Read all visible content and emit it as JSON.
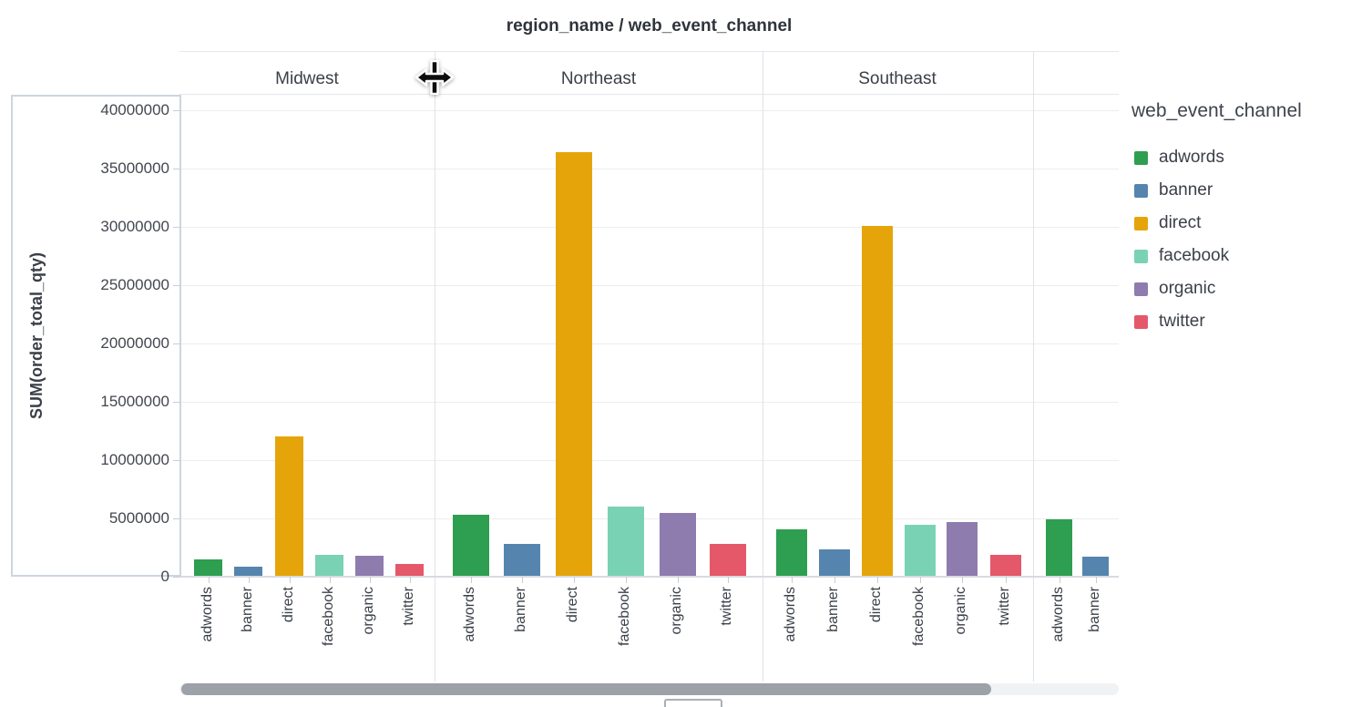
{
  "title": "region_name / web_event_channel",
  "y_axis": {
    "label": "SUM(order_total_qty)",
    "tick_labels": [
      "0",
      "5000000",
      "10000000",
      "15000000",
      "20000000",
      "25000000",
      "30000000",
      "35000000",
      "40000000"
    ]
  },
  "legend": {
    "title": "web_event_channel",
    "items": [
      {
        "label": "adwords",
        "color": "#2e9e51"
      },
      {
        "label": "banner",
        "color": "#5585ae"
      },
      {
        "label": "direct",
        "color": "#e5a50a"
      },
      {
        "label": "facebook",
        "color": "#7ad2b4"
      },
      {
        "label": "organic",
        "color": "#8e7cae"
      },
      {
        "label": "twitter",
        "color": "#e4586a"
      }
    ]
  },
  "icons": {
    "cursor": "move-horizontal-resize-cursor"
  },
  "chart_data": {
    "type": "bar",
    "title": "region_name / web_event_channel",
    "facet_field": "region_name",
    "color_field": "web_event_channel",
    "xlabel": "",
    "ylabel": "SUM(order_total_qty)",
    "ylim": [
      0,
      40000000
    ],
    "ytick_step": 5000000,
    "grid": true,
    "legend_position": "right",
    "categories": [
      "adwords",
      "banner",
      "direct",
      "facebook",
      "organic",
      "twitter"
    ],
    "facets": [
      {
        "name": "Midwest",
        "partial": false,
        "values": [
          1500000,
          850000,
          12000000,
          1900000,
          1800000,
          1100000
        ]
      },
      {
        "name": "Northeast",
        "partial": false,
        "values": [
          5300000,
          2850000,
          36400000,
          6000000,
          5500000,
          2800000
        ]
      },
      {
        "name": "Southeast",
        "partial": false,
        "values": [
          4100000,
          2350000,
          30100000,
          4450000,
          4700000,
          1850000
        ]
      },
      {
        "name": "",
        "partial": true,
        "values": [
          4900000,
          1750000
        ]
      }
    ],
    "colors": {
      "adwords": "#2e9e51",
      "banner": "#5585ae",
      "direct": "#e5a50a",
      "facebook": "#7ad2b4",
      "organic": "#8e7cae",
      "twitter": "#e4586a"
    }
  }
}
